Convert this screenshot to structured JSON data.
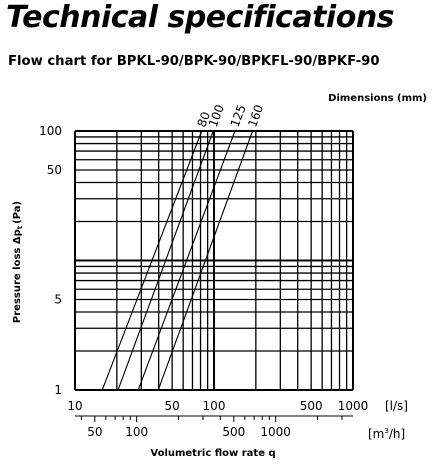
{
  "page": {
    "title": "Technical specifications",
    "subtitle": "Flow chart for BPKL-90/BPK-90/BPKFL-90/BPKF-90"
  },
  "chart_data": {
    "type": "line",
    "scale": "log-log",
    "grid": true,
    "title": "",
    "dimensions_label": "Dimensions (mm)",
    "ylabel": "Pressure loss Δp",
    "ylabel_subscript": "t",
    "ylabel_unit": "(Pa)",
    "xlabel": "Volumetric flow rate q",
    "xunit": "[l/s]",
    "x2unit_base": "[m",
    "x2unit_exp": "3",
    "x2unit_tail": "/h]",
    "xlim": [
      10,
      1000
    ],
    "ylim": [
      1,
      100
    ],
    "x2lim": [
      36,
      3600
    ],
    "x_ticks": [
      {
        "value": 10,
        "label": "10"
      },
      {
        "value": 50,
        "label": "50"
      },
      {
        "value": 100,
        "label": "100"
      },
      {
        "value": 500,
        "label": "500"
      },
      {
        "value": 1000,
        "label": "1000"
      }
    ],
    "x2_ticks": [
      {
        "value": 50,
        "label": "50"
      },
      {
        "value": 100,
        "label": "100"
      },
      {
        "value": 500,
        "label": "500"
      },
      {
        "value": 1000,
        "label": "1000"
      }
    ],
    "y_ticks": [
      {
        "value": 1,
        "label": "1"
      },
      {
        "value": 5,
        "label": "5"
      },
      {
        "value": 50,
        "label": "50"
      },
      {
        "value": 100,
        "label": "100"
      }
    ],
    "series": [
      {
        "name": "80",
        "x": [
          15.7,
          81.6
        ],
        "y": [
          1,
          100
        ]
      },
      {
        "name": "100",
        "x": [
          20.4,
          98.7
        ],
        "y": [
          1,
          100
        ]
      },
      {
        "name": "125",
        "x": [
          28.5,
          141.5
        ],
        "y": [
          1,
          100
        ]
      },
      {
        "name": "160",
        "x": [
          39.7,
          189.4
        ],
        "y": [
          1,
          100
        ]
      }
    ]
  }
}
